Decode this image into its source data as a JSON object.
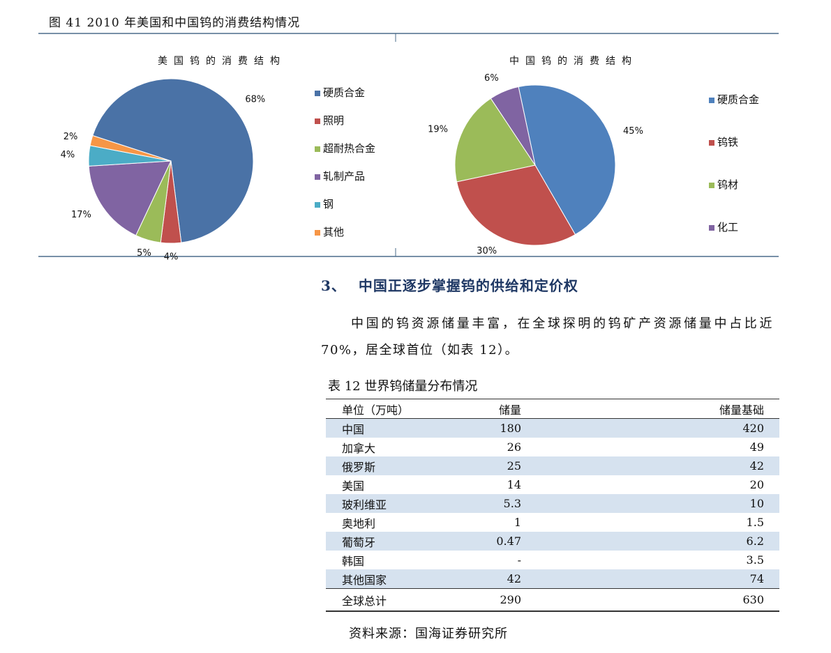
{
  "figure_title": "图 41 2010 年美国和中国钨的消费结构情况",
  "chart_data": [
    {
      "type": "pie",
      "title": "美国钨的消费结构",
      "categories": [
        "硬质合金",
        "照明",
        "超耐热合金",
        "轧制产品",
        "钢",
        "其他"
      ],
      "values": [
        68,
        4,
        5,
        17,
        4,
        2
      ],
      "value_labels": [
        "68%",
        "4%",
        "5%",
        "17%",
        "4%",
        "2%"
      ],
      "colors": [
        "#4a72a6",
        "#c0504d",
        "#9bbb59",
        "#8064a2",
        "#4bacc6",
        "#f79646"
      ]
    },
    {
      "type": "pie",
      "title": "中国钨的消费结构",
      "categories": [
        "硬质合金",
        "钨铁",
        "钨材",
        "化工"
      ],
      "values": [
        45,
        30,
        19,
        6
      ],
      "value_labels": [
        "45%",
        "30%",
        "19%",
        "6%"
      ],
      "colors": [
        "#4f81bd",
        "#c0504d",
        "#9bbb59",
        "#8064a2"
      ]
    }
  ],
  "section": {
    "number": "3、",
    "heading": "中国正逐步掌握钨的供给和定价权",
    "paragraph": "中国的钨资源储量丰富，在全球探明的钨矿产资源储量中占比近 70%，居全球首位（如表 12）。"
  },
  "table": {
    "caption": "表 12 世界钨储量分布情况",
    "header": [
      "单位（万吨）",
      "储量",
      "储量基础"
    ],
    "rows": [
      [
        "中国",
        "180",
        "420"
      ],
      [
        "加拿大",
        "26",
        "49"
      ],
      [
        "俄罗斯",
        "25",
        "42"
      ],
      [
        "美国",
        "14",
        "20"
      ],
      [
        "玻利维亚",
        "5.3",
        "10"
      ],
      [
        "奥地利",
        "1",
        "1.5"
      ],
      [
        "葡萄牙",
        "0.47",
        "6.2"
      ],
      [
        "韩国",
        "-",
        "3.5"
      ],
      [
        "其他国家",
        "42",
        "74"
      ]
    ],
    "total": [
      "全球总计",
      "290",
      "630"
    ]
  },
  "source": "资料来源：国海证券研究所"
}
